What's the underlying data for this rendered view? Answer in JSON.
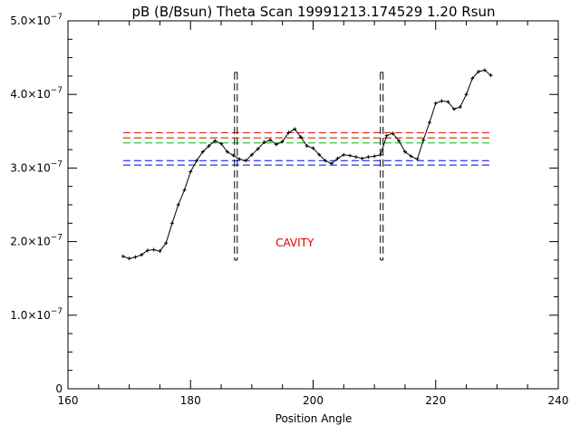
{
  "chart_data": {
    "type": "line",
    "title": "pB (B/Bsun) Theta Scan 19991213.174529 1.20 Rsun",
    "xlabel": "Position Angle",
    "ylabel": "",
    "xlim": [
      160,
      240
    ],
    "ylim": [
      0,
      5e-07
    ],
    "x_ticks": [
      {
        "value": 160,
        "label": "160"
      },
      {
        "value": 180,
        "label": "180"
      },
      {
        "value": 200,
        "label": "200"
      },
      {
        "value": 220,
        "label": "220"
      },
      {
        "value": 240,
        "label": "240"
      }
    ],
    "y_ticks": [
      {
        "value": 0,
        "mant": "0",
        "exp": ""
      },
      {
        "value": 1e-07,
        "mant": "1.0×10",
        "exp": "−7"
      },
      {
        "value": 2e-07,
        "mant": "2.0×10",
        "exp": "−7"
      },
      {
        "value": 3e-07,
        "mant": "3.0×10",
        "exp": "−7"
      },
      {
        "value": 4e-07,
        "mant": "4.0×10",
        "exp": "−7"
      },
      {
        "value": 5e-07,
        "mant": "5.0×10",
        "exp": "−7"
      }
    ],
    "series": [
      {
        "color": "#000000",
        "marker": "plus",
        "x": [
          169,
          170,
          171,
          172,
          173,
          174,
          175,
          176,
          177,
          178,
          179,
          180,
          181,
          182,
          183,
          184,
          185,
          186,
          187,
          188,
          189,
          190,
          191,
          192,
          193,
          194,
          195,
          196,
          197,
          198,
          199,
          200,
          201,
          202,
          203,
          204,
          205,
          206,
          207,
          208,
          209,
          210,
          211,
          212,
          213,
          214,
          215,
          216,
          217,
          218,
          219,
          220,
          221,
          222,
          223,
          224,
          225,
          226,
          227,
          228,
          229
        ],
        "y": [
          1.8e-07,
          1.77e-07,
          1.79e-07,
          1.82e-07,
          1.88e-07,
          1.89e-07,
          1.87e-07,
          1.98e-07,
          2.25e-07,
          2.5e-07,
          2.7e-07,
          2.95e-07,
          3.1e-07,
          3.22e-07,
          3.3e-07,
          3.37e-07,
          3.33e-07,
          3.22e-07,
          3.17e-07,
          3.12e-07,
          3.1e-07,
          3.18e-07,
          3.26e-07,
          3.35e-07,
          3.38e-07,
          3.32e-07,
          3.36e-07,
          3.48e-07,
          3.53e-07,
          3.42e-07,
          3.3e-07,
          3.27e-07,
          3.18e-07,
          3.1e-07,
          3.06e-07,
          3.13e-07,
          3.18e-07,
          3.17e-07,
          3.15e-07,
          3.13e-07,
          3.15e-07,
          3.16e-07,
          3.18e-07,
          3.44e-07,
          3.47e-07,
          3.37e-07,
          3.22e-07,
          3.16e-07,
          3.12e-07,
          3.38e-07,
          3.62e-07,
          3.88e-07,
          3.91e-07,
          3.9e-07,
          3.8e-07,
          3.83e-07,
          4e-07,
          4.22e-07,
          4.31e-07,
          4.33e-07,
          4.26e-07
        ]
      }
    ],
    "reference_lines": [
      {
        "y": 3.48e-07,
        "color": "#dd0000",
        "x_range": [
          169,
          229
        ]
      },
      {
        "y": 3.41e-07,
        "color": "#00aa00",
        "x_range": [
          169,
          229
        ]
      },
      {
        "y": 3.34e-07,
        "color": "#00bb00",
        "x_range": [
          169,
          229
        ]
      },
      {
        "y": 3.41e-07,
        "color": "#cc3300",
        "x_range": [
          169,
          229
        ]
      },
      {
        "y": 3.1e-07,
        "color": "#0000ff",
        "x_range": [
          169,
          229
        ]
      },
      {
        "y": 3.04e-07,
        "color": "#0000cc",
        "x_range": [
          169,
          229
        ]
      }
    ],
    "vertical_markers": [
      {
        "x": 187.4,
        "y_range": [
          1.75e-07,
          4.3e-07
        ]
      },
      {
        "x": 211.2,
        "y_range": [
          1.75e-07,
          4.3e-07
        ]
      }
    ],
    "annotations": [
      {
        "text": "CAVITY",
        "x": 197,
        "y": 1.98e-07,
        "color": "#dd0000"
      }
    ],
    "grid": false
  }
}
